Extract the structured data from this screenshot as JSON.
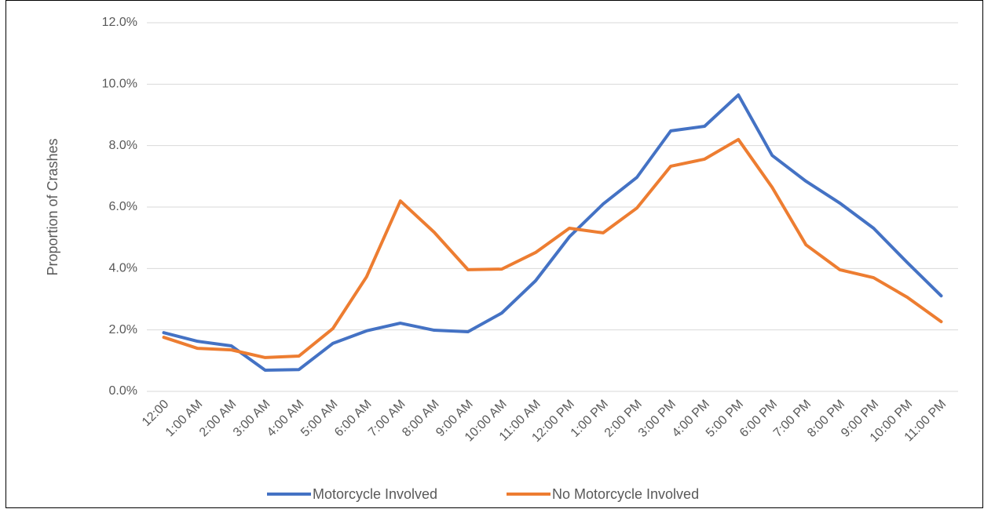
{
  "chart_data": {
    "type": "line",
    "y_label": "Proportion of Crashes",
    "categories": [
      "12:00",
      "1:00 AM",
      "2:00 AM",
      "3:00 AM",
      "4:00 AM",
      "5:00 AM",
      "6:00 AM",
      "7:00 AM",
      "8:00 AM",
      "9:00 AM",
      "10:00 AM",
      "11:00 AM",
      "12:00 PM",
      "1:00 PM",
      "2:00 PM",
      "3:00 PM",
      "4:00 PM",
      "5:00 PM",
      "6:00 PM",
      "7:00 PM",
      "8:00 PM",
      "9:00 PM",
      "10:00 PM",
      "11:00 PM"
    ],
    "series": [
      {
        "name": "Motorcycle Involved",
        "color": "#4472c4",
        "values": [
          1.91,
          1.63,
          1.48,
          0.69,
          0.71,
          1.56,
          1.97,
          2.22,
          1.99,
          1.94,
          2.55,
          3.6,
          5.03,
          6.1,
          6.97,
          8.48,
          8.63,
          9.65,
          7.68,
          6.84,
          6.13,
          5.31,
          4.19,
          3.11
        ]
      },
      {
        "name": "No Motorcycle Involved",
        "color": "#ed7d31",
        "values": [
          1.76,
          1.4,
          1.35,
          1.1,
          1.15,
          2.04,
          3.73,
          6.2,
          5.18,
          3.96,
          3.98,
          4.52,
          5.31,
          5.16,
          5.97,
          7.33,
          7.56,
          8.2,
          6.64,
          4.77,
          3.96,
          3.7,
          3.06,
          2.27
        ]
      }
    ],
    "ylim": [
      0,
      12
    ],
    "yticks": [
      {
        "value": 0,
        "label": "0.0%"
      },
      {
        "value": 2,
        "label": "2.0%"
      },
      {
        "value": 4,
        "label": "4.0%"
      },
      {
        "value": 6,
        "label": "6.0%"
      },
      {
        "value": 8,
        "label": "8.0%"
      },
      {
        "value": 10,
        "label": "10.0%"
      },
      {
        "value": 12,
        "label": "12.0%"
      }
    ],
    "grid": true,
    "legend": "bottom"
  }
}
